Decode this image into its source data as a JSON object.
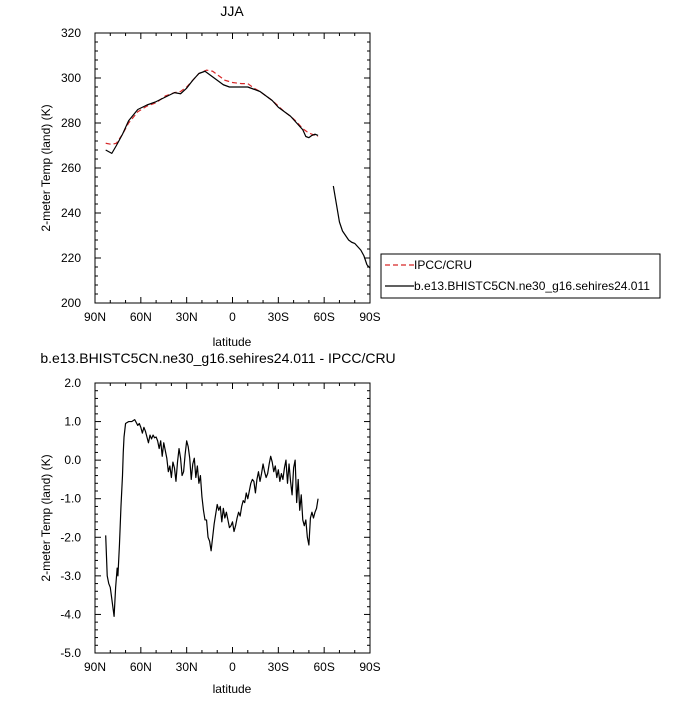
{
  "chart_data": [
    {
      "type": "line",
      "title": "JJA",
      "xlabel": "latitude",
      "ylabel": "2-meter Temp (land) (K)",
      "xlim": [
        90,
        -90
      ],
      "ylim": [
        200,
        320
      ],
      "x_ticks": [
        90,
        60,
        30,
        0,
        -30,
        -60,
        -90
      ],
      "x_tick_labels": [
        "90N",
        "60N",
        "30N",
        "0",
        "30S",
        "60S",
        "90S"
      ],
      "y_ticks": [
        200,
        220,
        240,
        260,
        280,
        300,
        320
      ],
      "y_tick_labels": [
        "200",
        "220",
        "240",
        "260",
        "280",
        "300",
        "320"
      ],
      "legend_position": "right",
      "series": [
        {
          "name": "IPCC/CRU",
          "color": "#d62728",
          "dash": "dashed",
          "points": [
            [
              83,
              271
            ],
            [
              79,
              270.5
            ],
            [
              76,
              271
            ],
            [
              72,
              275
            ],
            [
              68,
              280
            ],
            [
              62,
              285
            ],
            [
              56,
              287.5
            ],
            [
              50,
              289
            ],
            [
              44,
              292
            ],
            [
              38,
              293.5
            ],
            [
              34,
              294
            ],
            [
              30,
              296
            ],
            [
              26,
              299
            ],
            [
              22,
              302
            ],
            [
              17,
              303.5
            ],
            [
              13,
              303
            ],
            [
              9,
              301
            ],
            [
              5,
              299
            ],
            [
              0,
              298
            ],
            [
              -6,
              297.5
            ],
            [
              -10,
              297.5
            ],
            [
              -14,
              295.5
            ],
            [
              -18,
              294
            ],
            [
              -22,
              292
            ],
            [
              -26,
              290
            ],
            [
              -30,
              287.5
            ],
            [
              -34,
              285
            ],
            [
              -38,
              283
            ],
            [
              -42,
              280.5
            ],
            [
              -46,
              277.5
            ],
            [
              -49,
              276
            ],
            [
              -52,
              275
            ],
            [
              -56,
              274
            ]
          ]
        },
        {
          "name": "b.e13.BHISTC5CN.ne30_g16.sehires24.011",
          "color": "#000000",
          "dash": "solid",
          "segments": [
            [
              [
                83,
                268
              ],
              [
                79,
                266.5
              ],
              [
                76,
                270
              ],
              [
                72,
                275
              ],
              [
                68,
                281
              ],
              [
                62,
                286
              ],
              [
                56,
                288
              ],
              [
                50,
                289.5
              ],
              [
                44,
                291.5
              ],
              [
                38,
                293.5
              ],
              [
                34,
                293
              ],
              [
                30,
                295.5
              ],
              [
                26,
                299
              ],
              [
                22,
                302
              ],
              [
                18,
                303
              ],
              [
                14,
                301
              ],
              [
                10,
                299
              ],
              [
                6,
                297
              ],
              [
                2,
                296
              ],
              [
                -4,
                296
              ],
              [
                -10,
                296
              ],
              [
                -14,
                295
              ],
              [
                -18,
                294
              ],
              [
                -22,
                292
              ],
              [
                -26,
                290
              ],
              [
                -30,
                287
              ],
              [
                -34,
                285
              ],
              [
                -38,
                283
              ],
              [
                -42,
                280
              ],
              [
                -46,
                277
              ],
              [
                -48,
                274
              ],
              [
                -50,
                273.5
              ],
              [
                -52,
                274.5
              ],
              [
                -54,
                275
              ],
              [
                -56,
                274.5
              ]
            ],
            [
              [
                -66,
                252
              ],
              [
                -68,
                244
              ],
              [
                -70,
                236
              ],
              [
                -72,
                232
              ],
              [
                -74,
                230
              ],
              [
                -76,
                228
              ],
              [
                -78,
                227
              ],
              [
                -80,
                226.5
              ],
              [
                -82,
                225
              ],
              [
                -84,
                223.5
              ],
              [
                -86,
                221
              ],
              [
                -88,
                217
              ],
              [
                -90,
                215.5
              ]
            ]
          ]
        }
      ]
    },
    {
      "type": "line",
      "title": "b.e13.BHISTC5CN.ne30_g16.sehires24.011 - IPCC/CRU",
      "xlabel": "latitude",
      "ylabel": "2-meter Temp (land) (K)",
      "xlim": [
        90,
        -90
      ],
      "ylim": [
        -5,
        2
      ],
      "x_ticks": [
        90,
        60,
        30,
        0,
        -30,
        -60,
        -90
      ],
      "x_tick_labels": [
        "90N",
        "60N",
        "30N",
        "0",
        "30S",
        "60S",
        "90S"
      ],
      "y_ticks": [
        -5,
        -4,
        -3,
        -2,
        -1,
        0,
        1,
        2
      ],
      "y_tick_labels": [
        "-5.0",
        "-4.0",
        "-3.0",
        "-2.0",
        "-1.0",
        "0.0",
        "1.0",
        "2.0"
      ],
      "series": [
        {
          "name": "",
          "color": "#000000",
          "dash": "solid",
          "points": [
            [
              83,
              -1.95
            ],
            [
              82,
              -3.0
            ],
            [
              81,
              -3.2
            ],
            [
              80,
              -3.3
            ],
            [
              79,
              -3.6
            ],
            [
              78,
              -3.9
            ],
            [
              77.5,
              -4.05
            ],
            [
              76.5,
              -3.3
            ],
            [
              75.5,
              -2.8
            ],
            [
              75,
              -3.0
            ],
            [
              74,
              -2.2
            ],
            [
              73,
              -1.2
            ],
            [
              72,
              -0.4
            ],
            [
              71.5,
              0.2
            ],
            [
              71,
              0.6
            ],
            [
              70,
              0.95
            ],
            [
              68,
              1.0
            ],
            [
              66,
              1.0
            ],
            [
              64,
              1.05
            ],
            [
              62,
              0.9
            ],
            [
              61,
              0.95
            ],
            [
              60,
              0.85
            ],
            [
              59,
              0.7
            ],
            [
              58,
              0.85
            ],
            [
              57,
              0.75
            ],
            [
              56,
              0.6
            ],
            [
              55,
              0.45
            ],
            [
              54,
              0.65
            ],
            [
              53,
              0.55
            ],
            [
              52,
              0.65
            ],
            [
              51,
              0.58
            ],
            [
              50,
              0.6
            ],
            [
              49,
              0.5
            ],
            [
              48,
              0.3
            ],
            [
              47,
              0.5
            ],
            [
              46,
              0.1
            ],
            [
              45,
              0.45
            ],
            [
              44,
              0.25
            ],
            [
              43,
              0.05
            ],
            [
              42,
              -0.3
            ],
            [
              41,
              -0.15
            ],
            [
              40,
              -0.45
            ],
            [
              39,
              -0.05
            ],
            [
              38,
              -0.2
            ],
            [
              37,
              -0.55
            ],
            [
              36,
              -0.05
            ],
            [
              35,
              0.3
            ],
            [
              34,
              0.05
            ],
            [
              33,
              -0.4
            ],
            [
              32,
              -0.3
            ],
            [
              31,
              0.15
            ],
            [
              30,
              0.5
            ],
            [
              29,
              0.35
            ],
            [
              28,
              0.05
            ],
            [
              27,
              -0.5
            ],
            [
              26,
              -0.1
            ],
            [
              25,
              0.05
            ],
            [
              24,
              -0.45
            ],
            [
              23,
              -0.15
            ],
            [
              22,
              -0.6
            ],
            [
              21,
              -0.4
            ],
            [
              20,
              -0.95
            ],
            [
              19,
              -1.3
            ],
            [
              18,
              -1.55
            ],
            [
              17,
              -1.55
            ],
            [
              16,
              -2.0
            ],
            [
              15,
              -2.1
            ],
            [
              14,
              -2.35
            ],
            [
              13,
              -2.0
            ],
            [
              12,
              -1.65
            ],
            [
              11,
              -1.4
            ],
            [
              10,
              -1.15
            ],
            [
              9,
              -1.3
            ],
            [
              8,
              -1.2
            ],
            [
              7,
              -1.6
            ],
            [
              6,
              -1.25
            ],
            [
              5,
              -1.5
            ],
            [
              4,
              -1.35
            ],
            [
              3,
              -1.55
            ],
            [
              2,
              -1.75
            ],
            [
              1,
              -1.7
            ],
            [
              0,
              -1.6
            ],
            [
              -1,
              -1.85
            ],
            [
              -2,
              -1.7
            ],
            [
              -3,
              -1.5
            ],
            [
              -4,
              -1.35
            ],
            [
              -5,
              -1.45
            ],
            [
              -6,
              -1.2
            ],
            [
              -7,
              -1.05
            ],
            [
              -8,
              -1.1
            ],
            [
              -9,
              -0.85
            ],
            [
              -10,
              -1.0
            ],
            [
              -11,
              -0.8
            ],
            [
              -12,
              -0.6
            ],
            [
              -13,
              -0.5
            ],
            [
              -14,
              -0.55
            ],
            [
              -15,
              -0.85
            ],
            [
              -16,
              -0.5
            ],
            [
              -17,
              -0.3
            ],
            [
              -18,
              -0.55
            ],
            [
              -19,
              -0.35
            ],
            [
              -20,
              -0.1
            ],
            [
              -21,
              -0.3
            ],
            [
              -22,
              -0.45
            ],
            [
              -23,
              -0.35
            ],
            [
              -24,
              -0.1
            ],
            [
              -25,
              0.1
            ],
            [
              -26,
              -0.05
            ],
            [
              -27,
              -0.3
            ],
            [
              -28,
              -0.15
            ],
            [
              -29,
              -0.45
            ],
            [
              -30,
              -0.25
            ],
            [
              -31,
              -0.55
            ],
            [
              -32,
              -0.35
            ],
            [
              -33,
              -0.5
            ],
            [
              -34,
              -0.2
            ],
            [
              -35,
              0.0
            ],
            [
              -36,
              -0.6
            ],
            [
              -37,
              -0.1
            ],
            [
              -38,
              -0.55
            ],
            [
              -39,
              -0.9
            ],
            [
              -40,
              -0.2
            ],
            [
              -41,
              0.0
            ],
            [
              -42,
              -1.1
            ],
            [
              -43,
              -0.5
            ],
            [
              -44,
              -1.3
            ],
            [
              -45,
              -0.9
            ],
            [
              -46,
              -1.55
            ],
            [
              -47,
              -1.7
            ],
            [
              -48,
              -1.55
            ],
            [
              -49,
              -2.0
            ],
            [
              -50,
              -2.2
            ],
            [
              -51,
              -1.5
            ],
            [
              -52,
              -1.35
            ],
            [
              -53,
              -1.5
            ],
            [
              -54,
              -1.35
            ],
            [
              -55,
              -1.25
            ],
            [
              -56,
              -1.0
            ]
          ]
        }
      ]
    }
  ]
}
